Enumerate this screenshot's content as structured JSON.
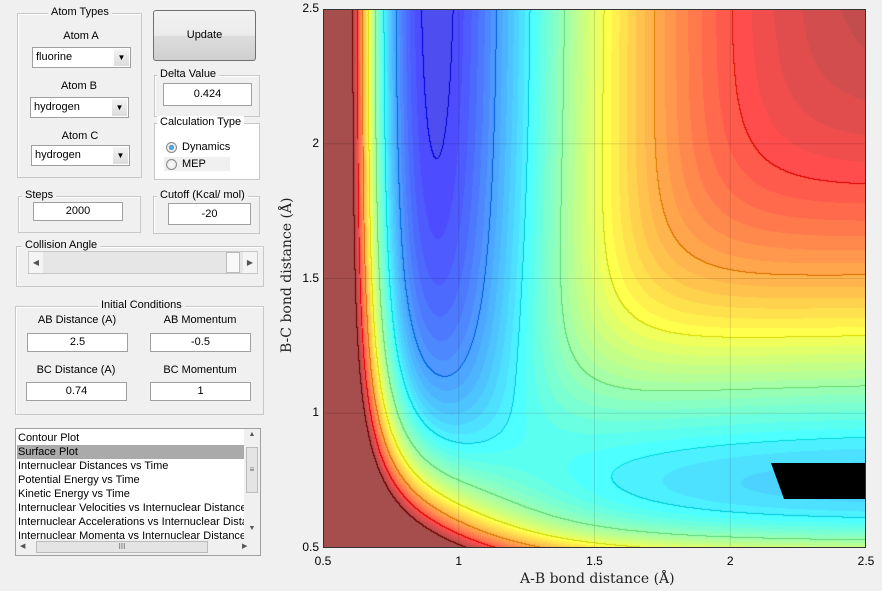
{
  "atom_types": {
    "title": "Atom Types",
    "atom_a": {
      "label": "Atom A",
      "value": "fluorine"
    },
    "atom_b": {
      "label": "Atom B",
      "value": "hydrogen"
    },
    "atom_c": {
      "label": "Atom C",
      "value": "hydrogen"
    }
  },
  "update_button": "Update",
  "delta": {
    "title": "Delta Value",
    "value": "0.424"
  },
  "calc_type": {
    "title": "Calculation Type",
    "options": [
      "Dynamics",
      "MEP"
    ],
    "selected": "Dynamics"
  },
  "steps": {
    "title": "Steps",
    "value": "2000"
  },
  "cutoff": {
    "title": "Cutoff (Kcal/ mol)",
    "value": "-20"
  },
  "collision_angle": {
    "title": "Collision Angle",
    "slider_fraction": 1.0
  },
  "initial_conditions": {
    "title": "Initial Conditions",
    "ab_distance": {
      "label": "AB Distance (A)",
      "value": "2.5"
    },
    "ab_momentum": {
      "label": "AB Momentum",
      "value": "-0.5"
    },
    "bc_distance": {
      "label": "BC Distance (A)",
      "value": "0.74"
    },
    "bc_momentum": {
      "label": "BC Momentum",
      "value": "1"
    }
  },
  "plot_list": {
    "items": [
      "Contour Plot",
      "Surface Plot",
      "Internuclear Distances vs Time",
      "Potential Energy vs Time",
      "Kinetic Energy vs Time",
      "Internuclear Velocities vs Internuclear Distances",
      "Internuclear Accelerations vs Internuclear Distances",
      "Internuclear Momenta vs Internuclear Distances"
    ],
    "selected": "Surface Plot"
  },
  "plot": {
    "type": "filled-contour",
    "colormap": "jet",
    "xlabel": "A-B bond distance (Å)",
    "ylabel": "B-C bond distance (Å)",
    "xlim": [
      0.5,
      2.5
    ],
    "ylim": [
      0.5,
      2.5
    ],
    "xticks": [
      "0.5",
      "1",
      "1.5",
      "2",
      "2.5"
    ],
    "yticks": [
      "0.5",
      "1",
      "1.5",
      "2",
      "2.5"
    ],
    "grid": true
  }
}
